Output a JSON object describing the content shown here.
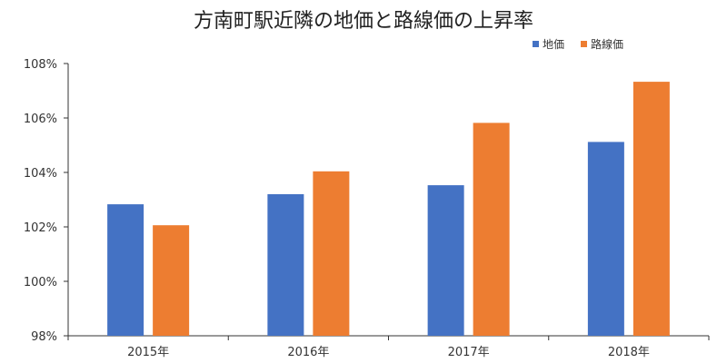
{
  "chart_data": {
    "type": "bar",
    "title": "方南町駅近隣の地価と路線価の上昇率",
    "categories": [
      "2015年",
      "2016年",
      "2017年",
      "2018年"
    ],
    "series": [
      {
        "name": "地価",
        "color": "#4472C4",
        "values": [
          102.83,
          103.2,
          103.53,
          105.12
        ]
      },
      {
        "name": "路線価",
        "color": "#ED7D31",
        "values": [
          102.06,
          104.04,
          105.82,
          107.33
        ]
      }
    ],
    "yticks": [
      "98%",
      "100%",
      "102%",
      "104%",
      "106%",
      "108%"
    ],
    "ylim": [
      98,
      108
    ],
    "ytick_values": [
      98,
      100,
      102,
      104,
      106,
      108
    ],
    "grid": false,
    "legend": "top-right",
    "xlabel": "",
    "ylabel": ""
  }
}
